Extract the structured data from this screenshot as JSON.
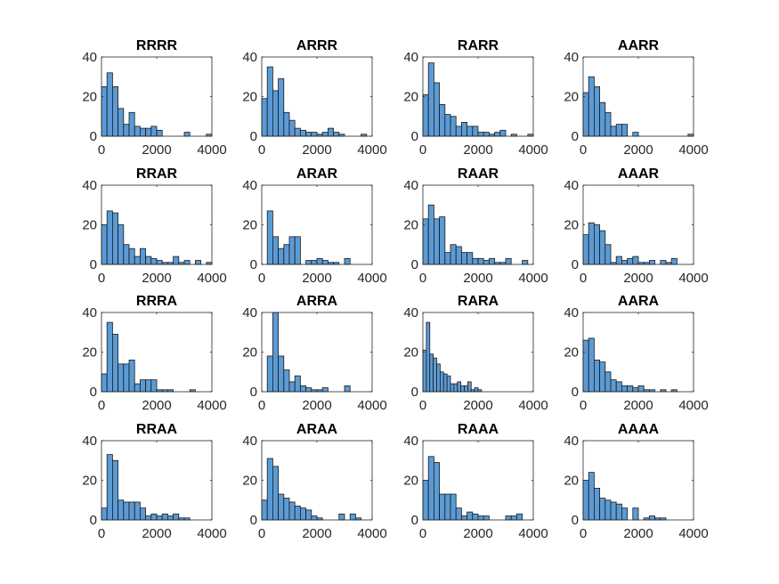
{
  "figure": {
    "style": {
      "bar_fill": "#5b9bd5",
      "bar_edge": "#1a1a1a",
      "axes_color": "#262626",
      "background": "#ffffff"
    }
  },
  "chart_data": [
    {
      "type": "bar",
      "title": "RRRR",
      "xlim": [
        0,
        4000
      ],
      "ylim": [
        0,
        40
      ],
      "xticks": [
        0,
        2000,
        4000
      ],
      "yticks": [
        0,
        20,
        40
      ],
      "bin_width": 200,
      "bin_edges_start": 0,
      "values": [
        25,
        32,
        25,
        14,
        6,
        12,
        5,
        4,
        4,
        5,
        3,
        0,
        0,
        0,
        0,
        2,
        0,
        0,
        0,
        1
      ]
    },
    {
      "type": "bar",
      "title": "ARRR",
      "xlim": [
        0,
        4000
      ],
      "ylim": [
        0,
        40
      ],
      "xticks": [
        0,
        2000,
        4000
      ],
      "yticks": [
        0,
        20,
        40
      ],
      "bin_width": 200,
      "bin_edges_start": 0,
      "values": [
        19,
        35,
        23,
        29,
        12,
        8,
        4,
        3,
        2,
        2,
        1,
        2,
        4,
        2,
        1,
        0,
        0,
        0,
        1,
        0
      ]
    },
    {
      "type": "bar",
      "title": "RARR",
      "xlim": [
        0,
        4000
      ],
      "ylim": [
        0,
        40
      ],
      "xticks": [
        0,
        2000,
        4000
      ],
      "yticks": [
        0,
        20,
        40
      ],
      "bin_width": 200,
      "bin_edges_start": 0,
      "values": [
        21,
        37,
        27,
        16,
        11,
        10,
        5,
        7,
        5,
        5,
        2,
        2,
        1,
        2,
        3,
        0,
        1,
        0,
        0,
        1
      ]
    },
    {
      "type": "bar",
      "title": "AARR",
      "xlim": [
        0,
        4000
      ],
      "ylim": [
        0,
        40
      ],
      "xticks": [
        0,
        2000,
        4000
      ],
      "yticks": [
        0,
        20,
        40
      ],
      "bin_width": 200,
      "bin_edges_start": 0,
      "values": [
        22,
        30,
        25,
        17,
        12,
        5,
        6,
        6,
        0,
        2,
        0,
        0,
        0,
        0,
        0,
        0,
        0,
        0,
        0,
        1
      ]
    },
    {
      "type": "bar",
      "title": "RRAR",
      "xlim": [
        0,
        4000
      ],
      "ylim": [
        0,
        40
      ],
      "xticks": [
        0,
        2000,
        4000
      ],
      "yticks": [
        0,
        20,
        40
      ],
      "bin_width": 200,
      "bin_edges_start": 0,
      "values": [
        20,
        27,
        26,
        20,
        10,
        8,
        4,
        8,
        4,
        3,
        2,
        1,
        1,
        4,
        1,
        2,
        0,
        2,
        0,
        1
      ]
    },
    {
      "type": "bar",
      "title": "ARAR",
      "xlim": [
        0,
        4000
      ],
      "ylim": [
        0,
        40
      ],
      "xticks": [
        0,
        2000,
        4000
      ],
      "yticks": [
        0,
        20,
        40
      ],
      "bin_width": 200,
      "bin_edges_start": 0,
      "values": [
        0,
        27,
        14,
        8,
        10,
        14,
        14,
        0,
        2,
        2,
        3,
        2,
        1,
        1,
        0,
        3,
        0,
        0,
        0,
        0
      ]
    },
    {
      "type": "bar",
      "title": "RAAR",
      "xlim": [
        0,
        4000
      ],
      "ylim": [
        0,
        40
      ],
      "xticks": [
        0,
        2000,
        4000
      ],
      "yticks": [
        0,
        20,
        40
      ],
      "bin_width": 200,
      "bin_edges_start": 0,
      "values": [
        23,
        30,
        23,
        24,
        6,
        10,
        9,
        6,
        6,
        3,
        3,
        2,
        3,
        1,
        1,
        3,
        0,
        0,
        2,
        0
      ]
    },
    {
      "type": "bar",
      "title": "AAAR",
      "xlim": [
        0,
        4000
      ],
      "ylim": [
        0,
        40
      ],
      "xticks": [
        0,
        2000,
        4000
      ],
      "yticks": [
        0,
        20,
        40
      ],
      "bin_width": 200,
      "bin_edges_start": 0,
      "values": [
        15,
        21,
        20,
        17,
        10,
        1,
        4,
        2,
        3,
        4,
        1,
        1,
        2,
        0,
        2,
        1,
        3,
        0,
        0,
        0
      ]
    },
    {
      "type": "bar",
      "title": "RRRA",
      "xlim": [
        0,
        4000
      ],
      "ylim": [
        0,
        40
      ],
      "xticks": [
        0,
        2000,
        4000
      ],
      "yticks": [
        0,
        20,
        40
      ],
      "bin_width": 200,
      "bin_edges_start": 0,
      "values": [
        9,
        35,
        29,
        14,
        14,
        16,
        4,
        6,
        6,
        6,
        1,
        1,
        1,
        0,
        0,
        0,
        1,
        0,
        0,
        0
      ]
    },
    {
      "type": "bar",
      "title": "ARRA",
      "xlim": [
        0,
        4000
      ],
      "ylim": [
        0,
        40
      ],
      "xticks": [
        0,
        2000,
        4000
      ],
      "yticks": [
        0,
        20,
        40
      ],
      "bin_width": 200,
      "bin_edges_start": 0,
      "values": [
        0,
        18,
        40,
        18,
        11,
        5,
        8,
        3,
        2,
        1,
        1,
        2,
        0,
        0,
        0,
        3,
        0,
        0,
        0,
        0
      ]
    },
    {
      "type": "bar",
      "title": "RARA",
      "xlim": [
        0,
        4000
      ],
      "ylim": [
        0,
        40
      ],
      "xticks": [
        0,
        2000,
        4000
      ],
      "yticks": [
        0,
        20,
        40
      ],
      "bin_width": 125,
      "bin_edges_start": 0,
      "values": [
        21,
        35,
        19,
        17,
        14,
        10,
        9,
        8,
        4,
        4,
        5,
        3,
        3,
        5,
        1,
        2,
        1,
        0,
        0,
        0,
        0,
        0,
        0,
        0,
        0,
        0,
        0,
        0,
        0,
        0,
        0,
        0
      ]
    },
    {
      "type": "bar",
      "title": "AARA",
      "xlim": [
        0,
        4000
      ],
      "ylim": [
        0,
        40
      ],
      "xticks": [
        0,
        2000,
        4000
      ],
      "yticks": [
        0,
        20,
        40
      ],
      "bin_width": 200,
      "bin_edges_start": 0,
      "values": [
        26,
        27,
        16,
        15,
        10,
        6,
        5,
        3,
        3,
        2,
        3,
        1,
        1,
        0,
        1,
        0,
        1,
        0,
        0,
        0
      ]
    },
    {
      "type": "bar",
      "title": "RRAA",
      "xlim": [
        0,
        4000
      ],
      "ylim": [
        0,
        40
      ],
      "xticks": [
        0,
        2000,
        4000
      ],
      "yticks": [
        0,
        20,
        40
      ],
      "bin_width": 200,
      "bin_edges_start": 0,
      "values": [
        6,
        33,
        30,
        10,
        9,
        9,
        9,
        6,
        2,
        3,
        2,
        3,
        2,
        3,
        1,
        1,
        0,
        0,
        0,
        0
      ]
    },
    {
      "type": "bar",
      "title": "ARAA",
      "xlim": [
        0,
        4000
      ],
      "ylim": [
        0,
        40
      ],
      "xticks": [
        0,
        2000,
        4000
      ],
      "yticks": [
        0,
        20,
        40
      ],
      "bin_width": 200,
      "bin_edges_start": 0,
      "values": [
        10,
        31,
        27,
        13,
        11,
        9,
        7,
        6,
        5,
        2,
        1,
        0,
        0,
        0,
        3,
        0,
        3,
        1,
        0,
        0
      ]
    },
    {
      "type": "bar",
      "title": "RAAA",
      "xlim": [
        0,
        4000
      ],
      "ylim": [
        0,
        40
      ],
      "xticks": [
        0,
        2000,
        4000
      ],
      "yticks": [
        0,
        20,
        40
      ],
      "bin_width": 200,
      "bin_edges_start": 0,
      "values": [
        20,
        32,
        29,
        13,
        13,
        13,
        6,
        2,
        4,
        3,
        2,
        2,
        0,
        0,
        0,
        2,
        2,
        3,
        0,
        0
      ]
    },
    {
      "type": "bar",
      "title": "AAAA",
      "xlim": [
        0,
        4000
      ],
      "ylim": [
        0,
        40
      ],
      "xticks": [
        0,
        2000,
        4000
      ],
      "yticks": [
        0,
        20,
        40
      ],
      "bin_width": 200,
      "bin_edges_start": 0,
      "values": [
        20,
        24,
        16,
        11,
        10,
        9,
        8,
        6,
        0,
        6,
        0,
        1,
        2,
        1,
        1,
        0,
        0,
        0,
        0,
        0
      ]
    }
  ]
}
